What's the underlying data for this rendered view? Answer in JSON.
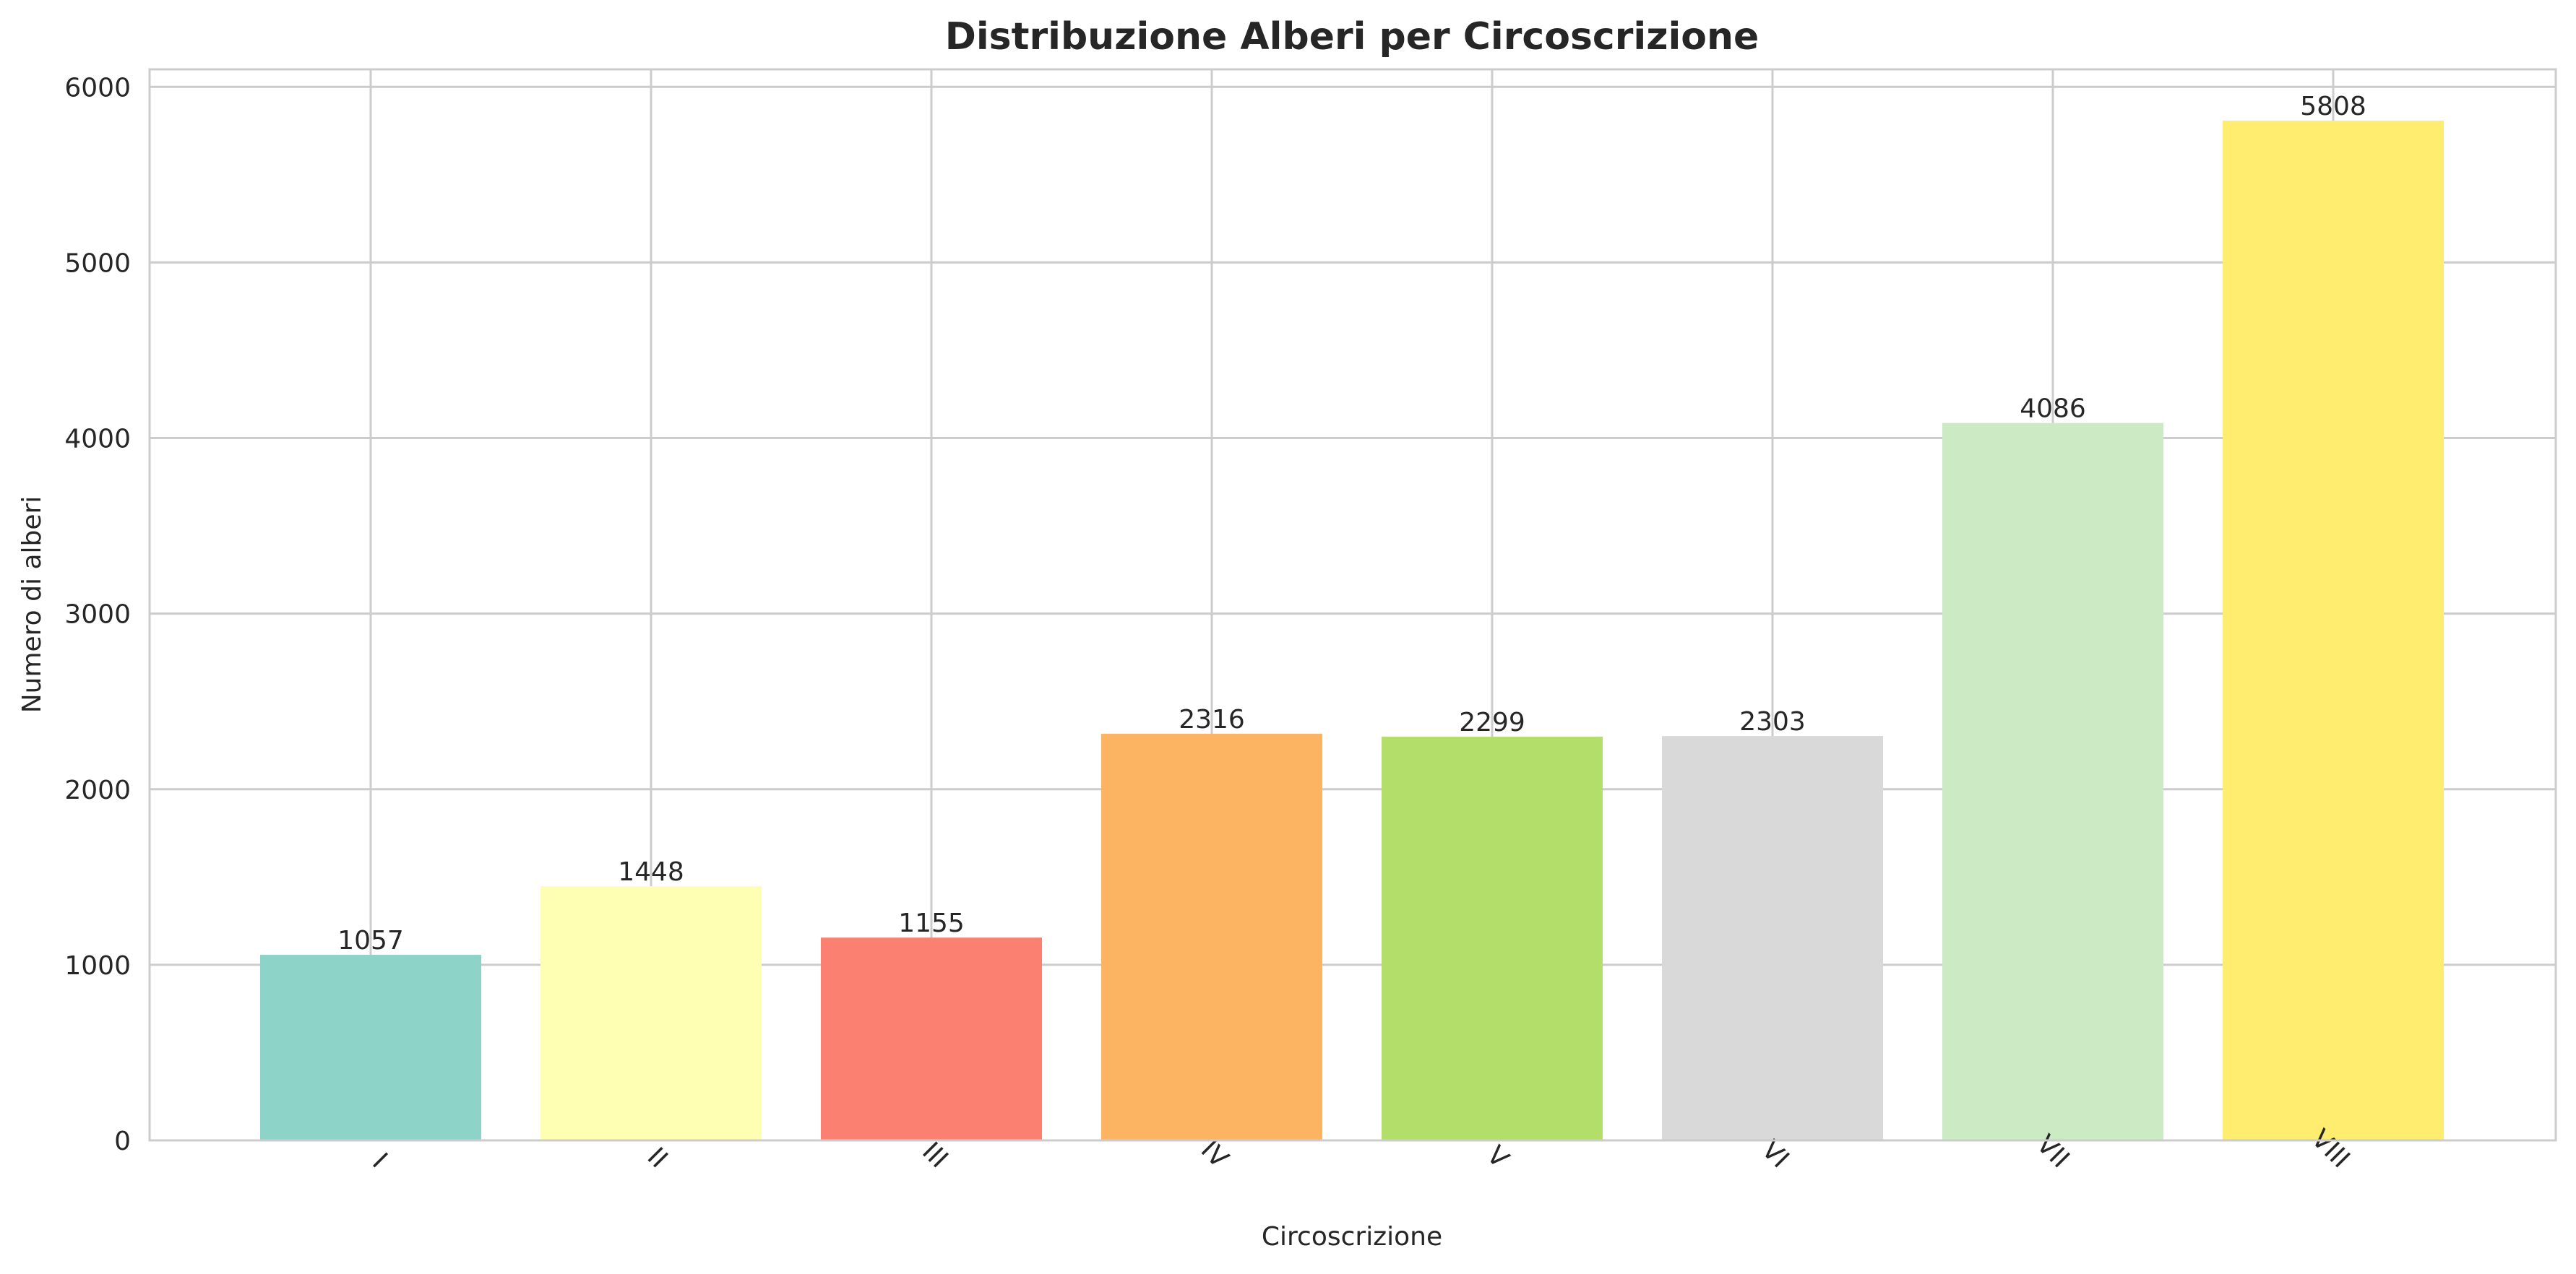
{
  "chart_data": {
    "type": "bar",
    "title": "Distribuzione Alberi per Circoscrizione",
    "xlabel": "Circoscrizione",
    "ylabel": "Numero di alberi",
    "categories": [
      "I",
      "II",
      "III",
      "IV",
      "V",
      "VI",
      "VII",
      "VIII"
    ],
    "values": [
      1057,
      1448,
      1155,
      2316,
      2299,
      2303,
      4086,
      5808
    ],
    "colors": [
      "#8dd3c7",
      "#ffffb3",
      "#fb8072",
      "#fdb462",
      "#b3de69",
      "#d9d9d9",
      "#ccebc5",
      "#ffed6f"
    ],
    "ylim": [
      0,
      6100
    ],
    "yticks": [
      0,
      1000,
      2000,
      3000,
      4000,
      5000,
      6000
    ],
    "grid": true,
    "xtick_rotation_deg": 45
  }
}
